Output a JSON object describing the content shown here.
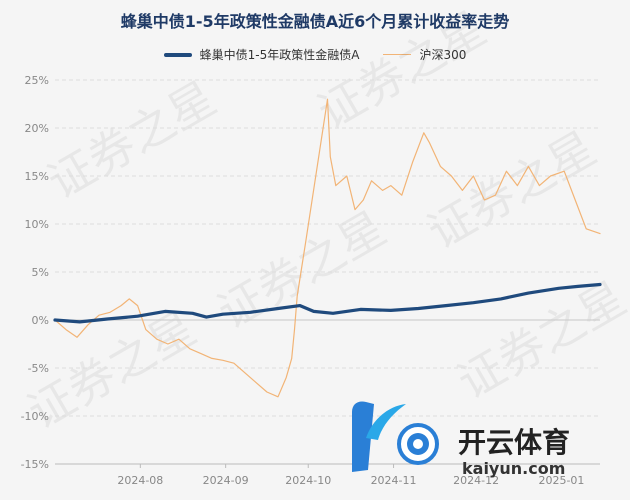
{
  "title": "蜂巢中债1-5年政策性金融债A近6个月累计收益率走势",
  "watermark": "证券之星",
  "logo": {
    "brand": "开云体育",
    "domain": "kaiyun.com"
  },
  "colors": {
    "main": "#1f4a7d",
    "hs300": "#f2b476",
    "grid": "#dddddd",
    "title": "#1f3a66"
  },
  "chart_data": {
    "type": "line",
    "title": "蜂巢中债1-5年政策性金融债A近6个月累计收益率走势",
    "legend_position": "top",
    "grid": true,
    "ylim": [
      -15,
      25
    ],
    "y_ticks": [
      25,
      20,
      15,
      10,
      5,
      0,
      -5,
      -10,
      -15
    ],
    "y_tick_labels": [
      "25%",
      "20%",
      "15%",
      "10%",
      "5%",
      "0%",
      "-5%",
      "-10%",
      "-15%"
    ],
    "x_range": [
      "2024-07-01",
      "2025-01-15"
    ],
    "x_tick_dates": [
      "2024-08-01",
      "2024-09-01",
      "2024-10-01",
      "2024-11-01",
      "2024-12-01",
      "2025-01-01"
    ],
    "x_tick_labels": [
      "2024-08",
      "2024-09",
      "2024-10",
      "2024-11",
      "2024-12",
      "2025-01"
    ],
    "series": [
      {
        "name": "蜂巢中债1-5年政策性金融债A",
        "color": "#1f4a7d",
        "points": [
          [
            "2024-07-01",
            0.0
          ],
          [
            "2024-07-10",
            -0.2
          ],
          [
            "2024-07-20",
            0.1
          ],
          [
            "2024-07-31",
            0.4
          ],
          [
            "2024-08-10",
            0.9
          ],
          [
            "2024-08-20",
            0.7
          ],
          [
            "2024-08-25",
            0.3
          ],
          [
            "2024-08-31",
            0.6
          ],
          [
            "2024-09-10",
            0.8
          ],
          [
            "2024-09-20",
            1.2
          ],
          [
            "2024-09-28",
            1.5
          ],
          [
            "2024-10-03",
            0.9
          ],
          [
            "2024-10-10",
            0.7
          ],
          [
            "2024-10-20",
            1.1
          ],
          [
            "2024-10-31",
            1.0
          ],
          [
            "2024-11-10",
            1.2
          ],
          [
            "2024-11-20",
            1.5
          ],
          [
            "2024-11-30",
            1.8
          ],
          [
            "2024-12-10",
            2.2
          ],
          [
            "2024-12-20",
            2.8
          ],
          [
            "2024-12-31",
            3.3
          ],
          [
            "2025-01-07",
            3.5
          ],
          [
            "2025-01-15",
            3.7
          ]
        ]
      },
      {
        "name": "沪深300",
        "color": "#f2b476",
        "points": [
          [
            "2024-07-01",
            0.0
          ],
          [
            "2024-07-05",
            -1.0
          ],
          [
            "2024-07-09",
            -1.8
          ],
          [
            "2024-07-13",
            -0.5
          ],
          [
            "2024-07-17",
            0.5
          ],
          [
            "2024-07-21",
            0.8
          ],
          [
            "2024-07-25",
            1.5
          ],
          [
            "2024-07-28",
            2.2
          ],
          [
            "2024-07-31",
            1.5
          ],
          [
            "2024-08-03",
            -1.0
          ],
          [
            "2024-08-07",
            -2.0
          ],
          [
            "2024-08-11",
            -2.5
          ],
          [
            "2024-08-15",
            -2.0
          ],
          [
            "2024-08-19",
            -3.0
          ],
          [
            "2024-08-23",
            -3.5
          ],
          [
            "2024-08-27",
            -4.0
          ],
          [
            "2024-08-31",
            -4.2
          ],
          [
            "2024-09-04",
            -4.5
          ],
          [
            "2024-09-08",
            -5.5
          ],
          [
            "2024-09-12",
            -6.5
          ],
          [
            "2024-09-16",
            -7.5
          ],
          [
            "2024-09-20",
            -8.0
          ],
          [
            "2024-09-23",
            -6.0
          ],
          [
            "2024-09-25",
            -4.0
          ],
          [
            "2024-09-26",
            -1.0
          ],
          [
            "2024-09-27",
            2.5
          ],
          [
            "2024-09-30",
            8.0
          ],
          [
            "2024-10-08",
            23.0
          ],
          [
            "2024-10-09",
            17.0
          ],
          [
            "2024-10-11",
            14.0
          ],
          [
            "2024-10-15",
            15.0
          ],
          [
            "2024-10-18",
            11.5
          ],
          [
            "2024-10-21",
            12.5
          ],
          [
            "2024-10-24",
            14.5
          ],
          [
            "2024-10-28",
            13.5
          ],
          [
            "2024-10-31",
            14.0
          ],
          [
            "2024-11-04",
            13.0
          ],
          [
            "2024-11-08",
            16.5
          ],
          [
            "2024-11-12",
            19.5
          ],
          [
            "2024-11-14",
            18.5
          ],
          [
            "2024-11-18",
            16.0
          ],
          [
            "2024-11-22",
            15.0
          ],
          [
            "2024-11-26",
            13.5
          ],
          [
            "2024-11-30",
            15.0
          ],
          [
            "2024-12-04",
            12.5
          ],
          [
            "2024-12-08",
            13.0
          ],
          [
            "2024-12-12",
            15.5
          ],
          [
            "2024-12-16",
            14.0
          ],
          [
            "2024-12-20",
            16.0
          ],
          [
            "2024-12-24",
            14.0
          ],
          [
            "2024-12-28",
            15.0
          ],
          [
            "2025-01-02",
            15.5
          ],
          [
            "2025-01-06",
            12.5
          ],
          [
            "2025-01-10",
            9.5
          ],
          [
            "2025-01-15",
            9.0
          ]
        ]
      }
    ]
  }
}
